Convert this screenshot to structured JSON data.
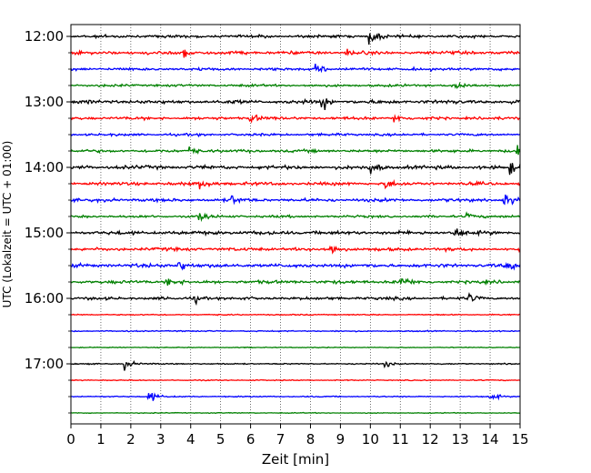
{
  "chart_data": {
    "type": "line",
    "title": "",
    "xlabel": "Zeit  [min]",
    "ylabel": "UTC (Lokalzeit = UTC + 01:00)",
    "xlim": [
      0,
      15
    ],
    "x_ticks": [
      0,
      1,
      2,
      3,
      4,
      5,
      6,
      7,
      8,
      9,
      10,
      11,
      12,
      13,
      14,
      15
    ],
    "y_tick_labels": [
      "12:00",
      "13:00",
      "14:00",
      "15:00",
      "16:00",
      "17:00"
    ],
    "row_minutes": 15,
    "start_time": "12:00",
    "grid": "vertical dotted",
    "legend": "none",
    "colors": [
      "#000000",
      "#ff0000",
      "#0000ff",
      "#008000"
    ],
    "series": [
      {
        "start": "12:00",
        "color": "#000000",
        "amplitude": 0.7,
        "events": [
          {
            "t": 10.0,
            "amp": 1.4
          }
        ]
      },
      {
        "start": "12:15",
        "color": "#ff0000",
        "amplitude": 0.8,
        "events": [
          {
            "t": 3.8,
            "amp": 1.0
          },
          {
            "t": 9.2,
            "amp": 0.6
          }
        ]
      },
      {
        "start": "12:30",
        "color": "#0000ff",
        "amplitude": 0.7,
        "events": [
          {
            "t": 8.2,
            "amp": 1.0
          }
        ]
      },
      {
        "start": "12:45",
        "color": "#008000",
        "amplitude": 0.6,
        "events": [
          {
            "t": 12.8,
            "amp": 1.2
          }
        ]
      },
      {
        "start": "13:00",
        "color": "#000000",
        "amplitude": 0.9,
        "events": [
          {
            "t": 8.4,
            "amp": 1.3
          }
        ]
      },
      {
        "start": "13:15",
        "color": "#ff0000",
        "amplitude": 0.7,
        "events": [
          {
            "t": 6.0,
            "amp": 1.0
          },
          {
            "t": 10.8,
            "amp": 0.9
          }
        ]
      },
      {
        "start": "13:30",
        "color": "#0000ff",
        "amplitude": 0.6,
        "events": []
      },
      {
        "start": "13:45",
        "color": "#008000",
        "amplitude": 0.7,
        "events": [
          {
            "t": 4.0,
            "amp": 0.8
          },
          {
            "t": 14.9,
            "amp": 1.0
          }
        ]
      },
      {
        "start": "14:00",
        "color": "#000000",
        "amplitude": 0.9,
        "events": [
          {
            "t": 10.0,
            "amp": 1.3
          },
          {
            "t": 14.7,
            "amp": 1.0
          }
        ]
      },
      {
        "start": "14:15",
        "color": "#ff0000",
        "amplitude": 0.8,
        "events": [
          {
            "t": 4.3,
            "amp": 1.0
          },
          {
            "t": 10.5,
            "amp": 0.9
          }
        ]
      },
      {
        "start": "14:30",
        "color": "#0000ff",
        "amplitude": 0.8,
        "events": [
          {
            "t": 5.3,
            "amp": 1.0
          },
          {
            "t": 14.5,
            "amp": 1.0
          }
        ]
      },
      {
        "start": "14:45",
        "color": "#008000",
        "amplitude": 0.6,
        "events": [
          {
            "t": 4.3,
            "amp": 0.9
          },
          {
            "t": 13.2,
            "amp": 0.8
          }
        ]
      },
      {
        "start": "15:00",
        "color": "#000000",
        "amplitude": 0.9,
        "events": [
          {
            "t": 12.8,
            "amp": 1.2
          }
        ]
      },
      {
        "start": "15:15",
        "color": "#ff0000",
        "amplitude": 0.8,
        "events": [
          {
            "t": 8.7,
            "amp": 1.0
          }
        ]
      },
      {
        "start": "15:30",
        "color": "#0000ff",
        "amplitude": 0.9,
        "events": [
          {
            "t": 3.6,
            "amp": 1.3
          },
          {
            "t": 14.6,
            "amp": 1.0
          }
        ]
      },
      {
        "start": "15:45",
        "color": "#008000",
        "amplitude": 0.8,
        "events": [
          {
            "t": 3.2,
            "amp": 0.9
          },
          {
            "t": 11.0,
            "amp": 1.0
          }
        ]
      },
      {
        "start": "16:00",
        "color": "#000000",
        "amplitude": 0.7,
        "events": [
          {
            "t": 4.1,
            "amp": 0.8
          },
          {
            "t": 13.3,
            "amp": 0.7
          }
        ]
      },
      {
        "start": "16:15",
        "color": "#ff0000",
        "amplitude": 0.3,
        "events": []
      },
      {
        "start": "16:30",
        "color": "#0000ff",
        "amplitude": 0.3,
        "events": []
      },
      {
        "start": "16:45",
        "color": "#008000",
        "amplitude": 0.2,
        "events": []
      },
      {
        "start": "17:00",
        "color": "#000000",
        "amplitude": 0.3,
        "events": [
          {
            "t": 1.8,
            "amp": 1.0
          },
          {
            "t": 10.5,
            "amp": 0.6
          }
        ]
      },
      {
        "start": "17:15",
        "color": "#ff0000",
        "amplitude": 0.25,
        "events": []
      },
      {
        "start": "17:30",
        "color": "#0000ff",
        "amplitude": 0.3,
        "events": [
          {
            "t": 2.6,
            "amp": 1.3
          },
          {
            "t": 14.0,
            "amp": 1.0
          }
        ]
      },
      {
        "start": "17:45",
        "color": "#008000",
        "amplitude": 0.2,
        "events": []
      }
    ]
  }
}
